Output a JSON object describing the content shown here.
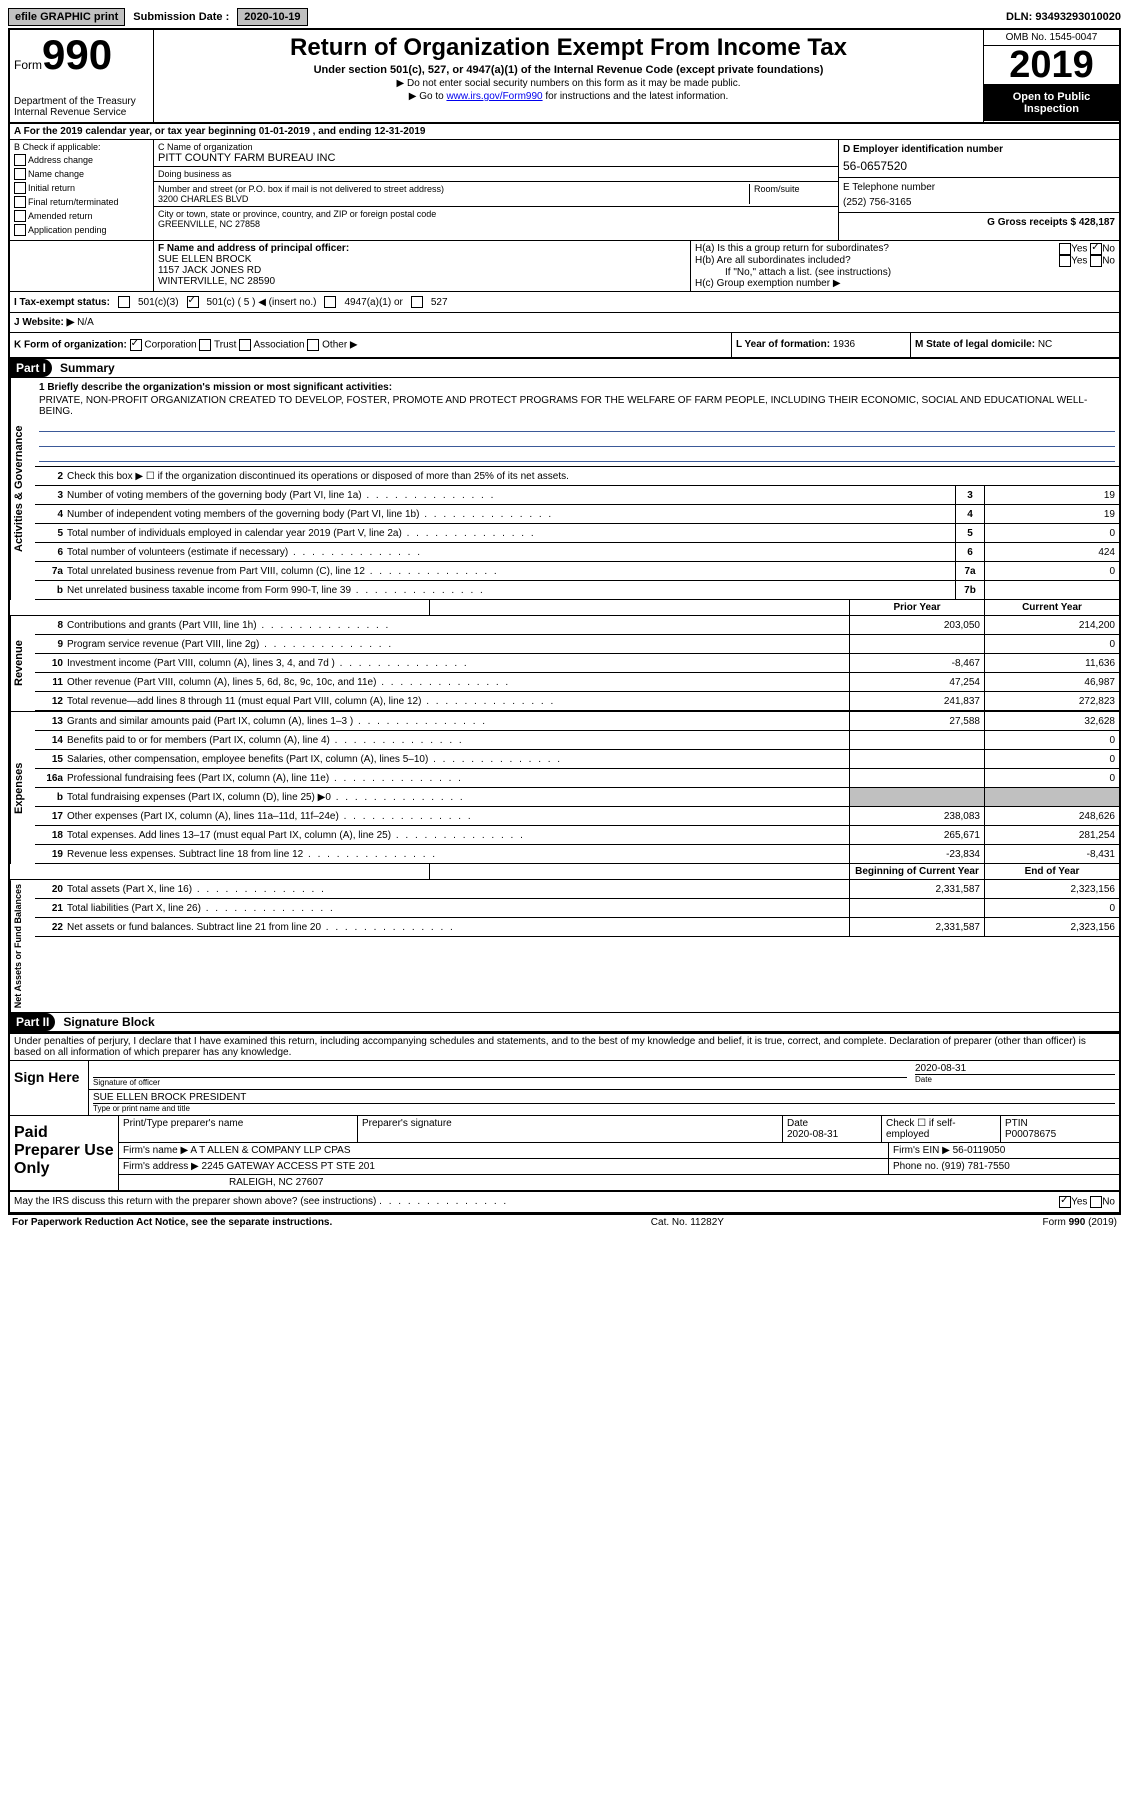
{
  "top_bar": {
    "efile": "efile GRAPHIC print",
    "sub_label": "Submission Date :",
    "sub_date": "2020-10-19",
    "dln_label": "DLN:",
    "dln": "93493293010020"
  },
  "header": {
    "form_word": "Form",
    "form_num": "990",
    "dept1": "Department of the Treasury",
    "dept2": "Internal Revenue Service",
    "title": "Return of Organization Exempt From Income Tax",
    "subtitle": "Under section 501(c), 527, or 4947(a)(1) of the Internal Revenue Code (except private foundations)",
    "arrow1": "▶ Do not enter social security numbers on this form as it may be made public.",
    "arrow2_pre": "▶ Go to ",
    "arrow2_link": "www.irs.gov/Form990",
    "arrow2_post": " for instructions and the latest information.",
    "omb": "OMB No. 1545-0047",
    "year": "2019",
    "open": "Open to Public Inspection"
  },
  "period": "A For the 2019 calendar year, or tax year beginning 01-01-2019   , and ending 12-31-2019",
  "box_b": {
    "label": "B Check if applicable:",
    "items": [
      "Address change",
      "Name change",
      "Initial return",
      "Final return/terminated",
      "Amended return",
      "Application pending"
    ]
  },
  "box_c": {
    "label": "C Name of organization",
    "name": "PITT COUNTY FARM BUREAU INC",
    "dba_label": "Doing business as",
    "addr_label": "Number and street (or P.O. box if mail is not delivered to street address)",
    "room_label": "Room/suite",
    "addr": "3200 CHARLES BLVD",
    "city_label": "City or town, state or province, country, and ZIP or foreign postal code",
    "city": "GREENVILLE, NC  27858"
  },
  "box_d": {
    "label": "D Employer identification number",
    "ein": "56-0657520"
  },
  "box_e": {
    "label": "E Telephone number",
    "phone": "(252) 756-3165"
  },
  "box_g": "G Gross receipts $ 428,187",
  "box_f": {
    "label": "F Name and address of principal officer:",
    "name": "SUE ELLEN BROCK",
    "addr1": "1157 JACK JONES RD",
    "addr2": "WINTERVILLE, NC  28590"
  },
  "box_h": {
    "ha": "H(a)  Is this a group return for subordinates?",
    "hb": "H(b)  Are all subordinates included?",
    "hb_note": "If \"No,\" attach a list. (see instructions)",
    "hc": "H(c)  Group exemption number ▶",
    "yes": "Yes",
    "no": "No"
  },
  "tax_status": {
    "label": "I  Tax-exempt status:",
    "c3": "501(c)(3)",
    "c": "501(c) ( 5 ) ◀ (insert no.)",
    "a1": "4947(a)(1) or",
    "s527": "527"
  },
  "website": {
    "label": "J  Website: ▶",
    "value": "N/A"
  },
  "form_org": {
    "label": "K Form of organization:",
    "corp": "Corporation",
    "trust": "Trust",
    "assoc": "Association",
    "other": "Other ▶",
    "l_label": "L Year of formation:",
    "l_val": "1936",
    "m_label": "M State of legal domicile:",
    "m_val": "NC"
  },
  "part1": {
    "header": "Part I",
    "title": "Summary",
    "vlabel1": "Activities & Governance",
    "vlabel2": "Revenue",
    "vlabel3": "Expenses",
    "vlabel4": "Net Assets or Fund Balances",
    "line1_label": "1  Briefly describe the organization's mission or most significant activities:",
    "mission": "PRIVATE, NON-PROFIT ORGANIZATION CREATED TO DEVELOP, FOSTER, PROMOTE AND PROTECT PROGRAMS FOR THE WELFARE OF FARM PEOPLE, INCLUDING THEIR ECONOMIC, SOCIAL AND EDUCATIONAL WELL-BEING.",
    "line2": "Check this box ▶ ☐  if the organization discontinued its operations or disposed of more than 25% of its net assets.",
    "rows_gov": [
      {
        "n": "3",
        "d": "Number of voting members of the governing body (Part VI, line 1a)",
        "box": "3",
        "v": "19"
      },
      {
        "n": "4",
        "d": "Number of independent voting members of the governing body (Part VI, line 1b)",
        "box": "4",
        "v": "19"
      },
      {
        "n": "5",
        "d": "Total number of individuals employed in calendar year 2019 (Part V, line 2a)",
        "box": "5",
        "v": "0"
      },
      {
        "n": "6",
        "d": "Total number of volunteers (estimate if necessary)",
        "box": "6",
        "v": "424"
      },
      {
        "n": "7a",
        "d": "Total unrelated business revenue from Part VIII, column (C), line 12",
        "box": "7a",
        "v": "0"
      },
      {
        "n": "b",
        "d": "Net unrelated business taxable income from Form 990-T, line 39",
        "box": "7b",
        "v": ""
      }
    ],
    "prior_label": "Prior Year",
    "current_label": "Current Year",
    "rows_rev": [
      {
        "n": "8",
        "d": "Contributions and grants (Part VIII, line 1h)",
        "p": "203,050",
        "c": "214,200"
      },
      {
        "n": "9",
        "d": "Program service revenue (Part VIII, line 2g)",
        "p": "",
        "c": "0"
      },
      {
        "n": "10",
        "d": "Investment income (Part VIII, column (A), lines 3, 4, and 7d )",
        "p": "-8,467",
        "c": "11,636"
      },
      {
        "n": "11",
        "d": "Other revenue (Part VIII, column (A), lines 5, 6d, 8c, 9c, 10c, and 11e)",
        "p": "47,254",
        "c": "46,987"
      },
      {
        "n": "12",
        "d": "Total revenue—add lines 8 through 11 (must equal Part VIII, column (A), line 12)",
        "p": "241,837",
        "c": "272,823"
      }
    ],
    "rows_exp": [
      {
        "n": "13",
        "d": "Grants and similar amounts paid (Part IX, column (A), lines 1–3 )",
        "p": "27,588",
        "c": "32,628"
      },
      {
        "n": "14",
        "d": "Benefits paid to or for members (Part IX, column (A), line 4)",
        "p": "",
        "c": "0"
      },
      {
        "n": "15",
        "d": "Salaries, other compensation, employee benefits (Part IX, column (A), lines 5–10)",
        "p": "",
        "c": "0"
      },
      {
        "n": "16a",
        "d": "Professional fundraising fees (Part IX, column (A), line 11e)",
        "p": "",
        "c": "0"
      },
      {
        "n": "b",
        "d": "Total fundraising expenses (Part IX, column (D), line 25) ▶0",
        "p": "GREY",
        "c": "GREY"
      },
      {
        "n": "17",
        "d": "Other expenses (Part IX, column (A), lines 11a–11d, 11f–24e)",
        "p": "238,083",
        "c": "248,626"
      },
      {
        "n": "18",
        "d": "Total expenses. Add lines 13–17 (must equal Part IX, column (A), line 25)",
        "p": "265,671",
        "c": "281,254"
      },
      {
        "n": "19",
        "d": "Revenue less expenses. Subtract line 18 from line 12",
        "p": "-23,834",
        "c": "-8,431"
      }
    ],
    "begin_label": "Beginning of Current Year",
    "end_label": "End of Year",
    "rows_net": [
      {
        "n": "20",
        "d": "Total assets (Part X, line 16)",
        "p": "2,331,587",
        "c": "2,323,156"
      },
      {
        "n": "21",
        "d": "Total liabilities (Part X, line 26)",
        "p": "",
        "c": "0"
      },
      {
        "n": "22",
        "d": "Net assets or fund balances. Subtract line 21 from line 20",
        "p": "2,331,587",
        "c": "2,323,156"
      }
    ]
  },
  "part2": {
    "header": "Part II",
    "title": "Signature Block",
    "declare": "Under penalties of perjury, I declare that I have examined this return, including accompanying schedules and statements, and to the best of my knowledge and belief, it is true, correct, and complete. Declaration of preparer (other than officer) is based on all information of which preparer has any knowledge.",
    "sign_here": "Sign Here",
    "sig_officer": "Signature of officer",
    "sig_date": "2020-08-31",
    "date_label": "Date",
    "officer_name": "SUE ELLEN BROCK  PRESIDENT",
    "type_label": "Type or print name and title",
    "paid_label": "Paid Preparer Use Only",
    "prep_name_label": "Print/Type preparer's name",
    "prep_sig_label": "Preparer's signature",
    "prep_date": "2020-08-31",
    "check_self": "Check ☐ if self-employed",
    "ptin_label": "PTIN",
    "ptin": "P00078675",
    "firm_name_label": "Firm's name   ▶",
    "firm_name": "A T ALLEN & COMPANY LLP CPAS",
    "firm_ein_label": "Firm's EIN ▶",
    "firm_ein": "56-0119050",
    "firm_addr_label": "Firm's address ▶",
    "firm_addr1": "2245 GATEWAY ACCESS PT STE 201",
    "firm_addr2": "RALEIGH, NC  27607",
    "firm_phone_label": "Phone no.",
    "firm_phone": "(919) 781-7550",
    "discuss": "May the IRS discuss this return with the preparer shown above? (see instructions)"
  },
  "footer": {
    "paperwork": "For Paperwork Reduction Act Notice, see the separate instructions.",
    "cat": "Cat. No. 11282Y",
    "form": "Form 990 (2019)"
  }
}
